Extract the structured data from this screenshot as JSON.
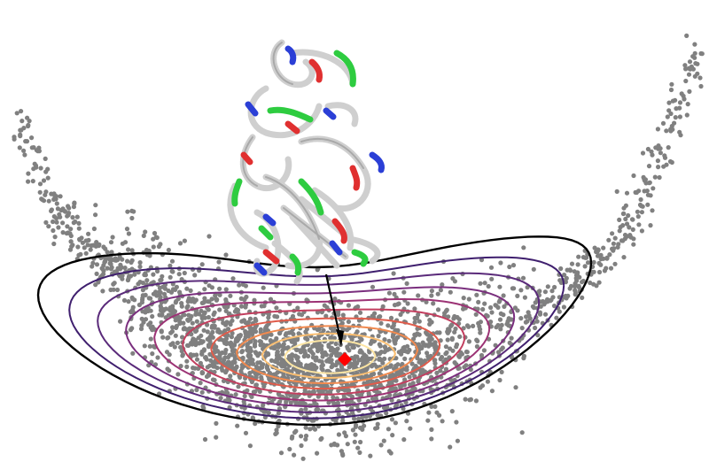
{
  "figure": {
    "description_visible_text": "",
    "scatter": {
      "color": "#808080",
      "point_count": 2600
    },
    "contours": {
      "levels": 9,
      "colors": [
        "#000000",
        "#3f1f6e",
        "#5a2a7a",
        "#7a2f7e",
        "#9c3375",
        "#c23f5f",
        "#e05c4b",
        "#f18a4f",
        "#fbbf72",
        "#fde5a3"
      ]
    },
    "marker": {
      "shape": "diamond",
      "color": "#ff0000"
    },
    "arrow": {
      "color": "#000000"
    },
    "protein": {
      "ribbon_color": "#d9d9d9",
      "highlight_colors": [
        "#2ecc40",
        "#e03030",
        "#2b3fd6"
      ]
    }
  }
}
